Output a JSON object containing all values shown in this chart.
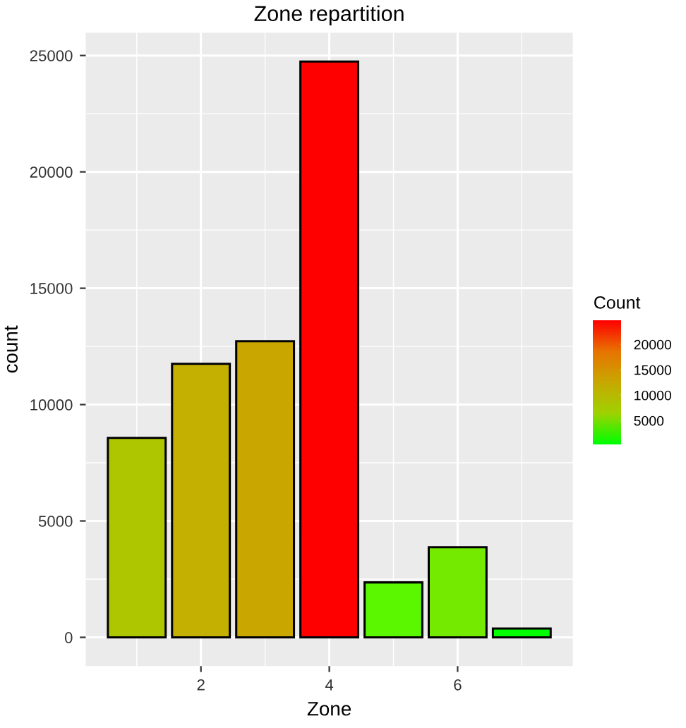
{
  "chart_data": {
    "type": "bar",
    "title": "Zone repartition",
    "xlabel": "Zone",
    "ylabel": "count",
    "clabel": "Count",
    "x": [
      1,
      2,
      3,
      4,
      5,
      6,
      7
    ],
    "values": [
      8570,
      11750,
      12720,
      24740,
      2360,
      3870,
      380
    ],
    "colors": [
      "#aec600",
      "#c4b000",
      "#c9a600",
      "#ff0000",
      "#5af700",
      "#74ea00",
      "#00ff00"
    ],
    "xlim": [
      0.205,
      7.795
    ],
    "xticks": [
      2,
      4,
      6
    ],
    "ylim": [
      -1237,
      25977
    ],
    "yticks": [
      0,
      5000,
      10000,
      15000,
      20000,
      25000
    ],
    "clim": [
      380,
      24740
    ],
    "cticks": [
      5000,
      10000,
      15000,
      20000
    ],
    "grid": true
  }
}
